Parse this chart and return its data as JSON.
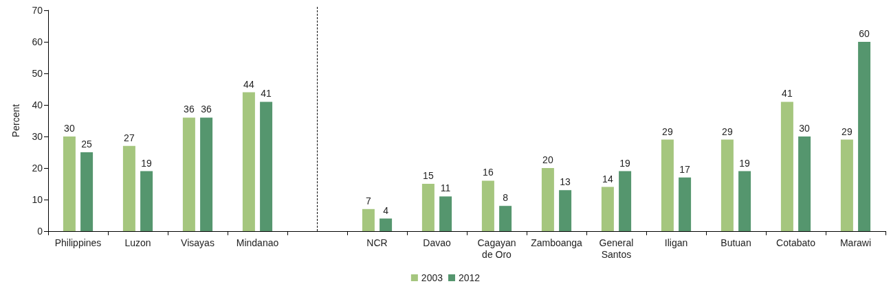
{
  "chart_data": {
    "type": "bar",
    "ylabel": "Percent",
    "categories": [
      "Philippines",
      "Luzon",
      "Visayas",
      "Mindanao",
      null,
      "NCR",
      "Davao",
      "Cagayan\nde Oro",
      "Zamboanga",
      "General\nSantos",
      "Iligan",
      "Butuan",
      "Cotabato",
      "Marawi"
    ],
    "series": [
      {
        "name": "2003",
        "color": "#a5c67e",
        "values": [
          30,
          27,
          36,
          44,
          null,
          7,
          15,
          16,
          20,
          14,
          29,
          29,
          41,
          29
        ]
      },
      {
        "name": "2012",
        "color": "#55966e",
        "values": [
          25,
          19,
          36,
          41,
          null,
          4,
          11,
          8,
          13,
          19,
          17,
          19,
          30,
          60
        ]
      }
    ],
    "ylim": [
      0,
      70
    ],
    "yticks": [
      0,
      10,
      20,
      30,
      40,
      50,
      60,
      70
    ],
    "data_labels": true,
    "legend": "bottom"
  }
}
